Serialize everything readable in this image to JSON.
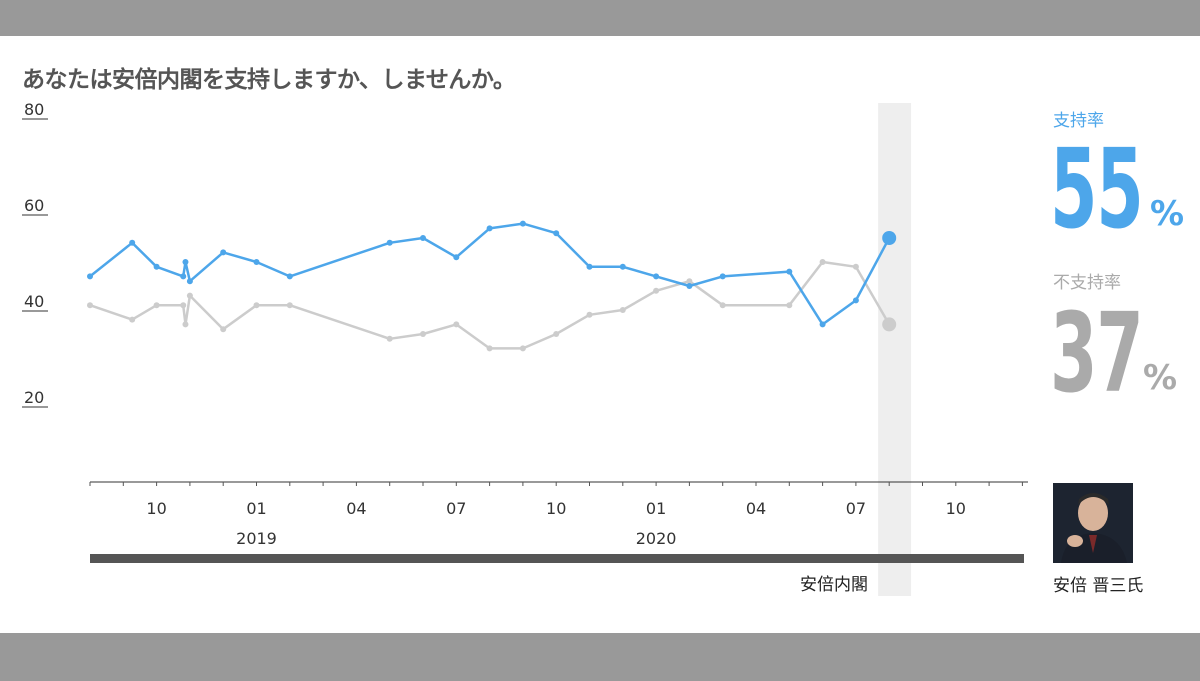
{
  "title": "あなたは安倍内閣を支持しますか、しませんか。",
  "approval": {
    "label": "支持率",
    "value": "55",
    "unit": "%"
  },
  "disapproval": {
    "label": "不支持率",
    "value": "37",
    "unit": "%"
  },
  "leader_name": "安倍 晋三氏",
  "era_bar_label": "安倍内閣",
  "colors": {
    "approval": "#4da6ea",
    "disapproval": "#cccccc",
    "highlight": "#eeeeee",
    "era_bar": "#555555"
  },
  "chart_data": {
    "type": "line",
    "title": "あなたは安倍内閣を支持しますか、しませんか。",
    "ylim": [
      0,
      80
    ],
    "y_ticks": [
      "80",
      "60",
      "40",
      "20"
    ],
    "x_ticks": [
      "10",
      "01",
      "04",
      "07",
      "10",
      "01",
      "04",
      "07",
      "10"
    ],
    "year_labels": [
      "2019",
      "2020"
    ],
    "x": [
      "2018-08-01",
      "2018-09-09",
      "2018-10-01",
      "2018-10-25",
      "2018-10-27",
      "2018-11-01",
      "2018-12-01",
      "2019-01-01",
      "2019-02-01",
      "2019-03-01",
      "2019-05-01",
      "2019-06-01",
      "2019-07-01",
      "2019-08-01",
      "2019-09-01",
      "2019-10-01",
      "2019-11-01",
      "2019-12-01",
      "2020-01-01",
      "2020-02-01",
      "2020-03-01",
      "2020-05-01",
      "2020-06-01",
      "2020-07-01",
      "2020-08-01"
    ],
    "series": [
      {
        "name": "支持率",
        "values": [
          47,
          54,
          49,
          47,
          50,
          46,
          52,
          50,
          47,
          null,
          54,
          55,
          51,
          57,
          58,
          56,
          49,
          49,
          47,
          45,
          47,
          48,
          37,
          42,
          55
        ]
      },
      {
        "name": "不支持率",
        "values": [
          41,
          38,
          41,
          41,
          37,
          43,
          36,
          41,
          41,
          null,
          34,
          35,
          37,
          32,
          32,
          35,
          39,
          40,
          44,
          46,
          41,
          41,
          50,
          49,
          37
        ]
      }
    ],
    "highlight_period": "2020-08",
    "grid": false
  }
}
